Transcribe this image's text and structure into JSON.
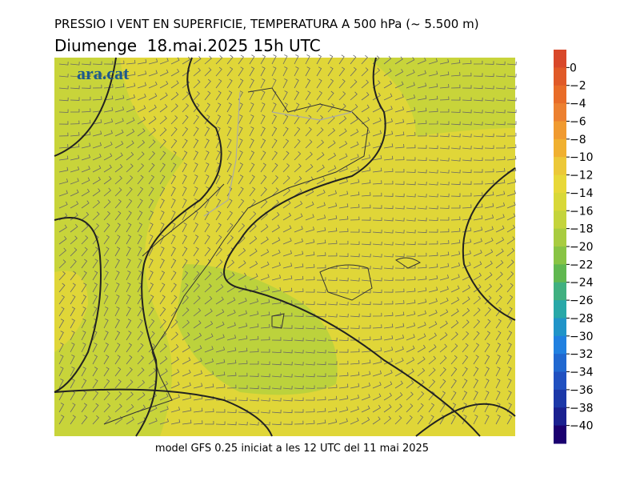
{
  "header": {
    "title": "PRESSIO I VENT EN SUPERFICIE, TEMPERATURA A 500 hPa (~ 5.500 m)",
    "subtitle": "Diumenge  18.mai.2025 15h UTC"
  },
  "logo": "ara.cat",
  "footer": "model GFS 0.25 iniciat a les 12 UTC del 11 mai 2025",
  "colorbar": {
    "labels": [
      "0",
      "−2",
      "−4",
      "−6",
      "−8",
      "−10",
      "−12",
      "−14",
      "−16",
      "−18",
      "−20",
      "−22",
      "−24",
      "−26",
      "−28",
      "−30",
      "−32",
      "−34",
      "−36",
      "−38",
      "−40"
    ],
    "colors": [
      "#d8482a",
      "#e05a28",
      "#e86c28",
      "#ec8030",
      "#f09a30",
      "#f0b030",
      "#ecc838",
      "#e8d838",
      "#d8d838",
      "#c4d43c",
      "#a8cc40",
      "#88c444",
      "#60b850",
      "#40b080",
      "#28a8a8",
      "#2094c8",
      "#2080e0",
      "#2068d0",
      "#2050c0",
      "#1c38a8",
      "#1a2090",
      "#1a0070"
    ]
  }
}
